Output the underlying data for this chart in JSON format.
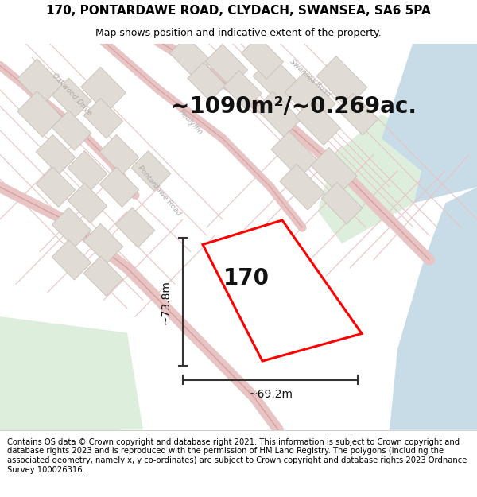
{
  "title_line1": "170, PONTARDAWE ROAD, CLYDACH, SWANSEA, SA6 5PA",
  "title_line2": "Map shows position and indicative extent of the property.",
  "footer_text": "Contains OS data © Crown copyright and database right 2021. This information is subject to Crown copyright and database rights 2023 and is reproduced with the permission of HM Land Registry. The polygons (including the associated geometry, namely x, y co-ordinates) are subject to Crown copyright and database rights 2023 Ordnance Survey 100026316.",
  "area_text": "~1090m²/~0.269ac.",
  "label_170": "170",
  "dim_vertical": "~73.8m",
  "dim_horizontal": "~69.2m",
  "map_bg": "#f2efea",
  "road_color": "#e8c4c4",
  "road_edge": "#d4a0a0",
  "plot_color": "#ff0000",
  "plot_fill": "#ffffff",
  "building_fill": "#e0dbd4",
  "building_edge": "#c8c0b8",
  "green_fill": "#deeedd",
  "blue_fill": "#c8dce8",
  "title_fontsize": 11,
  "subtitle_fontsize": 9,
  "area_fontsize": 20,
  "label_fontsize": 20,
  "dim_fontsize": 10,
  "footer_fontsize": 7.2,
  "map_label_fontsize": 6.5,
  "road_name_color": "#aaaaaa"
}
